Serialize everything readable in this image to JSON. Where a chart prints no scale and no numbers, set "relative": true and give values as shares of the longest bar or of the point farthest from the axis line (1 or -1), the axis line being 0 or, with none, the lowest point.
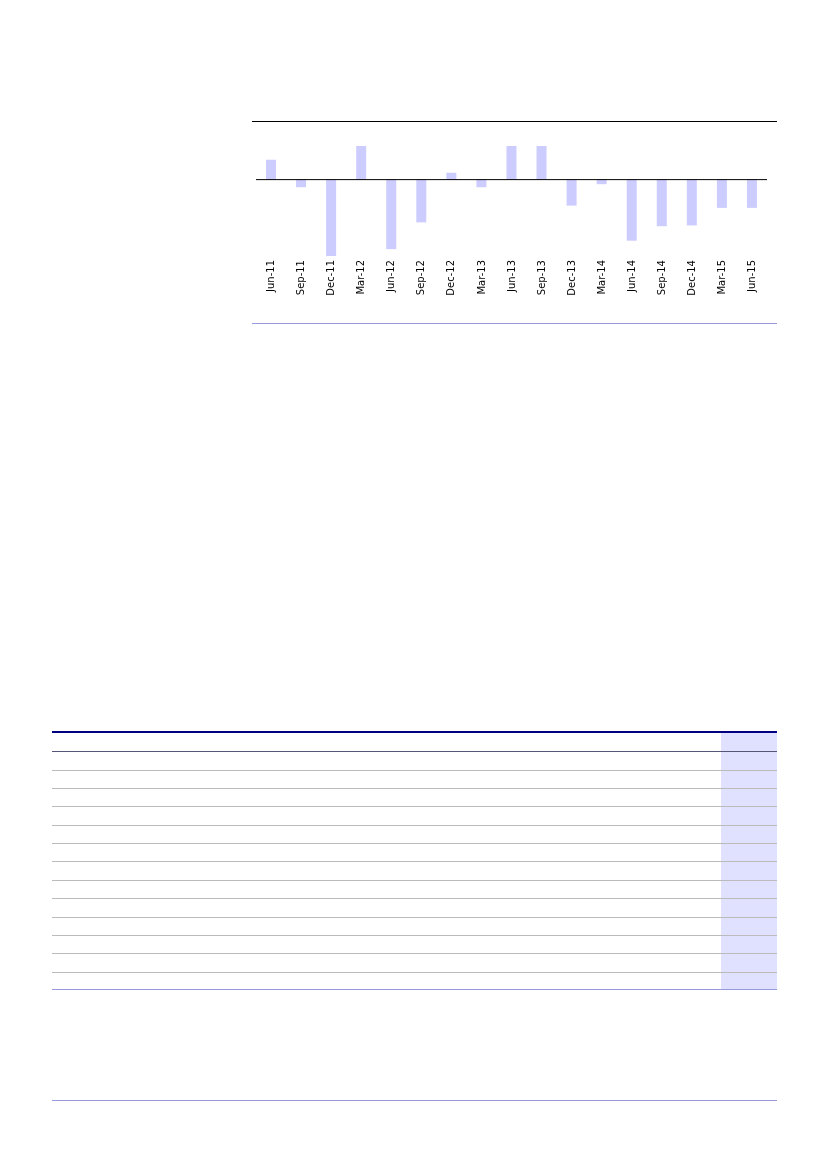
{
  "chart_data": {
    "type": "bar",
    "relative": true,
    "color": "#ccccff",
    "categories": [
      "Jun-11",
      "Sep-11",
      "Dec-11",
      "Mar-12",
      "Jun-12",
      "Sep-12",
      "Dec-12",
      "Mar-13",
      "Jun-13",
      "Sep-13",
      "Dec-13",
      "Mar-14",
      "Jun-14",
      "Sep-14",
      "Dec-14",
      "Mar-15",
      "Jun-15"
    ],
    "values": [
      0.26,
      -0.1,
      -1,
      0.44,
      -0.91,
      -0.56,
      0.09,
      -0.1,
      0.44,
      0.44,
      -0.34,
      -0.06,
      -0.8,
      -0.61,
      -0.6,
      -0.37,
      -0.37
    ]
  }
}
